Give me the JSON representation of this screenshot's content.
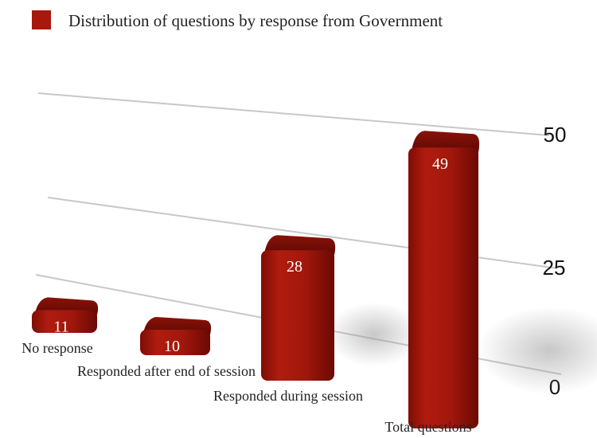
{
  "chart_data": {
    "type": "bar",
    "title": "",
    "xlabel": "",
    "ylabel": "",
    "categories": [
      "No response",
      "Responded after end of session",
      "Responded during session",
      "Total questions"
    ],
    "series": [
      {
        "name": "Distribution of questions by response from Government",
        "values": [
          11,
          10,
          28,
          49
        ],
        "color": "#a8180c"
      }
    ],
    "y_ticks": [
      "0",
      "25",
      "50"
    ],
    "ylim": [
      0,
      50
    ],
    "legend_position": "top-left",
    "grid": true,
    "style": "3d-perspective"
  }
}
